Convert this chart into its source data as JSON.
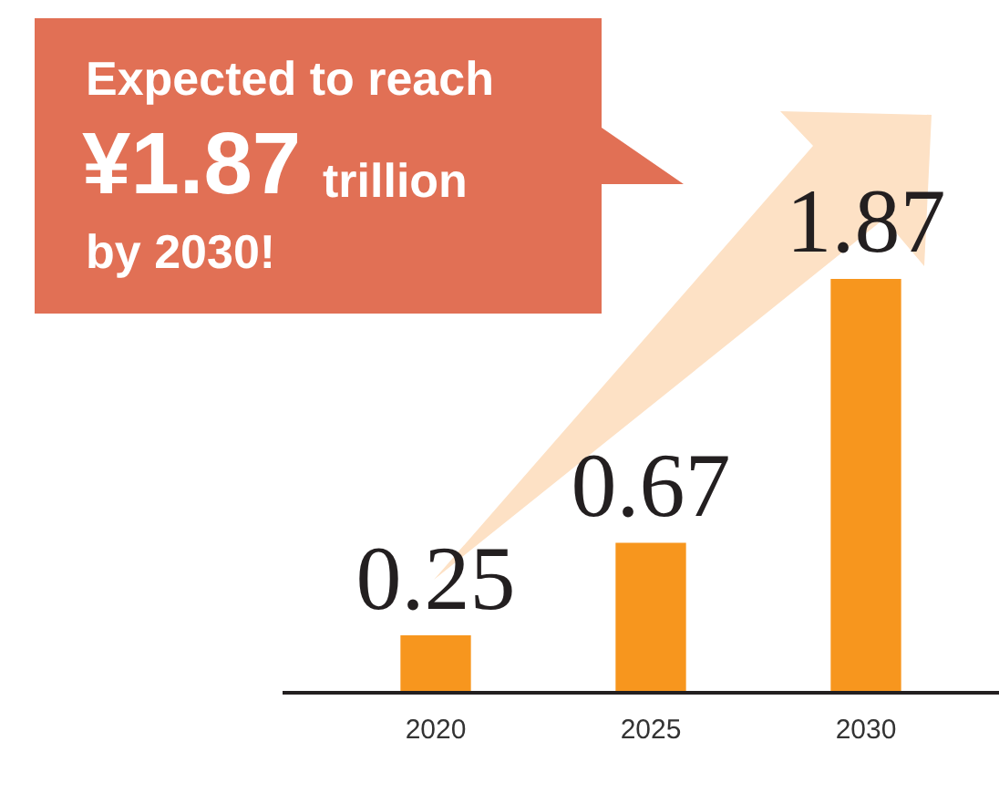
{
  "chart_data": {
    "type": "bar",
    "categories": [
      "2020",
      "2025",
      "2030"
    ],
    "values": [
      0.25,
      0.67,
      1.87
    ],
    "color": "#f7961e",
    "data_labels": true,
    "tick_labels": "x",
    "annotations": [
      "Expected to reach",
      "¥1.87",
      "trillion",
      "by 2030!"
    ]
  }
}
